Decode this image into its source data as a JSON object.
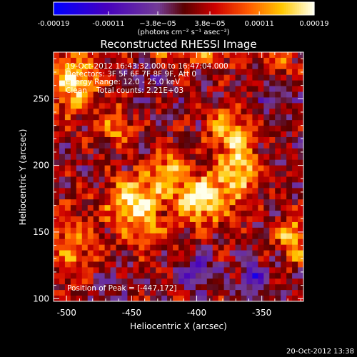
{
  "chart_data": {
    "type": "heatmap",
    "title": "Reconstructed RHESSI Image",
    "xlabel": "Heliocentric X (arcsec)",
    "ylabel": "Heliocentric Y (arcsec)",
    "xlim": [
      -510,
      -318
    ],
    "ylim": [
      98,
      285
    ],
    "x_ticks": [
      -500,
      -450,
      -400,
      -350
    ],
    "y_ticks": [
      100,
      150,
      200,
      250
    ],
    "x_tick_labels": [
      "-500",
      "-450",
      "-400",
      "-350"
    ],
    "y_tick_labels": [
      "100",
      "150",
      "200",
      "250"
    ],
    "colorbar": {
      "range": [
        -0.00019,
        0.00019
      ],
      "tick_labels": [
        "-0.00019",
        "-0.00011",
        "−3.8e−05",
        "3.8e−05",
        "0.00011",
        "0.00019"
      ],
      "tick_values": [
        -0.00019,
        -0.00011,
        -3.8e-05,
        3.8e-05,
        0.00011,
        0.00019
      ],
      "units": "(photons cm⁻² s⁻¹ asec⁻²)"
    },
    "annotations": [
      "19-Oct-2012 16:43:32.000 to 16:47:04.000",
      "Detectors: 3F 5F 6F 7F 8F 9F, Att 0",
      "Energy Range: 12.0 - 25.0 keV",
      "Clean    Total counts: 2.21E+03",
      "Position of Peak = [-447,172]"
    ],
    "peak": {
      "x": -447,
      "y": 172
    },
    "sources": [
      {
        "x": -447,
        "y": 172,
        "sx": 14,
        "sy": 14,
        "a": 1.0
      },
      {
        "x": -397,
        "y": 175,
        "sx": 14,
        "sy": 13,
        "a": 1.0
      },
      {
        "x": -368,
        "y": 200,
        "sx": 12,
        "sy": 18,
        "a": 0.8
      },
      {
        "x": -423,
        "y": 198,
        "sx": 9,
        "sy": 10,
        "a": 0.6
      },
      {
        "x": -378,
        "y": 230,
        "sx": 10,
        "sy": 10,
        "a": 0.55
      },
      {
        "x": -495,
        "y": 262,
        "sx": 14,
        "sy": 16,
        "a": 0.85
      },
      {
        "x": -462,
        "y": 228,
        "sx": 9,
        "sy": 10,
        "a": 0.55
      },
      {
        "x": -495,
        "y": 140,
        "sx": 14,
        "sy": 22,
        "a": 0.5
      },
      {
        "x": -326,
        "y": 145,
        "sx": 8,
        "sy": 12,
        "a": 0.75
      },
      {
        "x": -432,
        "y": 145,
        "sx": 12,
        "sy": 8,
        "a": 0.35
      },
      {
        "x": -400,
        "y": 285,
        "sx": 30,
        "sy": 8,
        "a": 0.45
      },
      {
        "x": -335,
        "y": 275,
        "sx": 10,
        "sy": 10,
        "a": 0.35
      },
      {
        "x": -355,
        "y": 115,
        "sx": 8,
        "sy": 8,
        "a": -0.6
      },
      {
        "x": -398,
        "y": 120,
        "sx": 10,
        "sy": 8,
        "a": -0.5
      },
      {
        "x": -470,
        "y": 110,
        "sx": 8,
        "sy": 8,
        "a": -0.35
      },
      {
        "x": -340,
        "y": 255,
        "sx": 8,
        "sy": 10,
        "a": -0.4
      },
      {
        "x": -440,
        "y": 265,
        "sx": 10,
        "sy": 8,
        "a": -0.3
      }
    ],
    "grid": false,
    "colormap": "blue-purple-red-yellow-white"
  },
  "footer": {
    "timestamp": "20-Oct-2012 13:38"
  }
}
